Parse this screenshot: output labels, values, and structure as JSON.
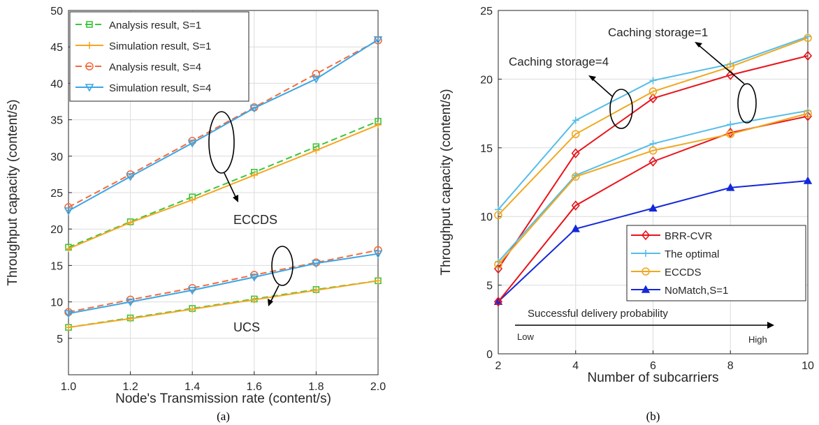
{
  "chart_data": [
    {
      "type": "line",
      "panel_label": "(a)",
      "xlabel": "Node's Transmission rate (content/s)",
      "ylabel": "Throughput capacity (content/s)",
      "xlim": [
        1.0,
        2.0
      ],
      "ylim": [
        0,
        50
      ],
      "xticks": [
        1.0,
        1.2,
        1.4,
        1.6,
        1.8,
        2.0
      ],
      "xtick_labels": [
        "1.0",
        "1.2",
        "1.4",
        "1.6",
        "1.8",
        "2.0"
      ],
      "yticks": [
        5,
        10,
        15,
        20,
        25,
        30,
        35,
        40,
        45,
        50
      ],
      "grid": true,
      "legend_position": "top-left",
      "series": [
        {
          "name": "Analysis result, S=1",
          "color": "#3cc43c",
          "dash": true,
          "marker": "square",
          "x": [
            1.0,
            1.2,
            1.4,
            1.6,
            1.8,
            2.0
          ],
          "values": [
            17.5,
            21.0,
            24.4,
            27.8,
            31.3,
            34.8
          ],
          "hidden": false
        },
        {
          "name": "Simulation result, S=1",
          "color": "#f5a623",
          "dash": false,
          "marker": "plus",
          "x": [
            1.0,
            1.2,
            1.4,
            1.6,
            1.8,
            2.0
          ],
          "values": [
            17.3,
            20.9,
            24.0,
            27.4,
            30.8,
            34.3
          ],
          "hidden": false
        },
        {
          "name": "Analysis result, S=4",
          "color": "#f26b3a",
          "dash": true,
          "marker": "circle",
          "x": [
            1.0,
            1.2,
            1.4,
            1.6,
            1.8,
            2.0
          ],
          "values": [
            23.0,
            27.5,
            32.1,
            36.7,
            41.3,
            45.9
          ],
          "hidden": false
        },
        {
          "name": "Simulation result, S=4",
          "color": "#3aa6e6",
          "dash": false,
          "marker": "triangle-down",
          "x": [
            1.0,
            1.2,
            1.4,
            1.6,
            1.8,
            2.0
          ],
          "values": [
            22.5,
            27.2,
            31.8,
            36.6,
            40.6,
            46.0
          ],
          "hidden": false
        },
        {
          "name": "",
          "color": "#3cc43c",
          "dash": true,
          "marker": "square",
          "x": [
            1.0,
            1.2,
            1.4,
            1.6,
            1.8,
            2.0
          ],
          "values": [
            6.5,
            7.8,
            9.1,
            10.4,
            11.7,
            12.9
          ],
          "hidden": true
        },
        {
          "name": "",
          "color": "#f5a623",
          "dash": false,
          "marker": "plus",
          "x": [
            1.0,
            1.2,
            1.4,
            1.6,
            1.8,
            2.0
          ],
          "values": [
            6.5,
            7.7,
            9.0,
            10.3,
            11.6,
            12.9
          ],
          "hidden": true
        },
        {
          "name": "",
          "color": "#f26b3a",
          "dash": true,
          "marker": "circle",
          "x": [
            1.0,
            1.2,
            1.4,
            1.6,
            1.8,
            2.0
          ],
          "values": [
            8.6,
            10.3,
            11.9,
            13.7,
            15.4,
            17.1
          ],
          "hidden": true
        },
        {
          "name": "",
          "color": "#3aa6e6",
          "dash": false,
          "marker": "triangle-down",
          "x": [
            1.0,
            1.2,
            1.4,
            1.6,
            1.8,
            2.0
          ],
          "values": [
            8.4,
            10.0,
            11.6,
            13.4,
            15.3,
            16.6
          ],
          "hidden": true
        }
      ],
      "annotations": [
        {
          "text": "ECCDS"
        },
        {
          "text": "UCS"
        }
      ]
    },
    {
      "type": "line",
      "panel_label": "(b)",
      "xlabel": "Number of subcarriers",
      "ylabel": "Throughput capacity (content/s)",
      "xlim": [
        2,
        10
      ],
      "ylim": [
        0,
        25
      ],
      "xticks": [
        2,
        4,
        6,
        8,
        10
      ],
      "xtick_labels": [
        "2",
        "4",
        "6",
        "8",
        "10"
      ],
      "yticks": [
        0,
        5,
        10,
        15,
        20,
        25
      ],
      "grid": true,
      "legend_position": "bottom-right",
      "series": [
        {
          "name": "BRR-CVR",
          "color": "#e8141a",
          "marker": "diamond",
          "x": [
            2,
            4,
            6,
            8,
            10
          ],
          "values": [
            6.2,
            14.6,
            18.6,
            20.3,
            21.7
          ],
          "hidden": false
        },
        {
          "name": "The optimal",
          "color": "#55bde8",
          "marker": "plus",
          "x": [
            2,
            4,
            6,
            8,
            10
          ],
          "values": [
            10.5,
            17.0,
            19.9,
            21.1,
            23.1
          ],
          "hidden": false
        },
        {
          "name": "ECCDS",
          "color": "#f0a820",
          "marker": "circle",
          "x": [
            2,
            4,
            6,
            8,
            10
          ],
          "values": [
            10.1,
            16.0,
            19.1,
            20.9,
            23.0
          ],
          "hidden": false
        },
        {
          "name": "NoMatch,S=1",
          "color": "#1428d8",
          "marker": "triangle-up",
          "x": [
            2,
            4,
            6,
            8,
            10
          ],
          "values": [
            3.8,
            9.1,
            10.6,
            12.1,
            12.6
          ],
          "hidden": false
        },
        {
          "name": "",
          "color": "#e8141a",
          "marker": "diamond",
          "x": [
            2,
            4,
            6,
            8,
            10
          ],
          "values": [
            3.8,
            10.8,
            14.0,
            16.1,
            17.3
          ],
          "hidden": true
        },
        {
          "name": "",
          "color": "#55bde8",
          "marker": "plus",
          "x": [
            2,
            4,
            6,
            8,
            10
          ],
          "values": [
            6.7,
            13.0,
            15.3,
            16.7,
            17.7
          ],
          "hidden": true
        },
        {
          "name": "",
          "color": "#f0a820",
          "marker": "circle",
          "x": [
            2,
            4,
            6,
            8,
            10
          ],
          "values": [
            6.5,
            12.9,
            14.8,
            16.0,
            17.5
          ],
          "hidden": true
        }
      ],
      "annotations": [
        {
          "text": "Caching storage=1"
        },
        {
          "text": "Caching storage=4"
        },
        {
          "text": "Successful delivery probability"
        },
        {
          "text": "Low"
        },
        {
          "text": "High"
        }
      ]
    }
  ]
}
